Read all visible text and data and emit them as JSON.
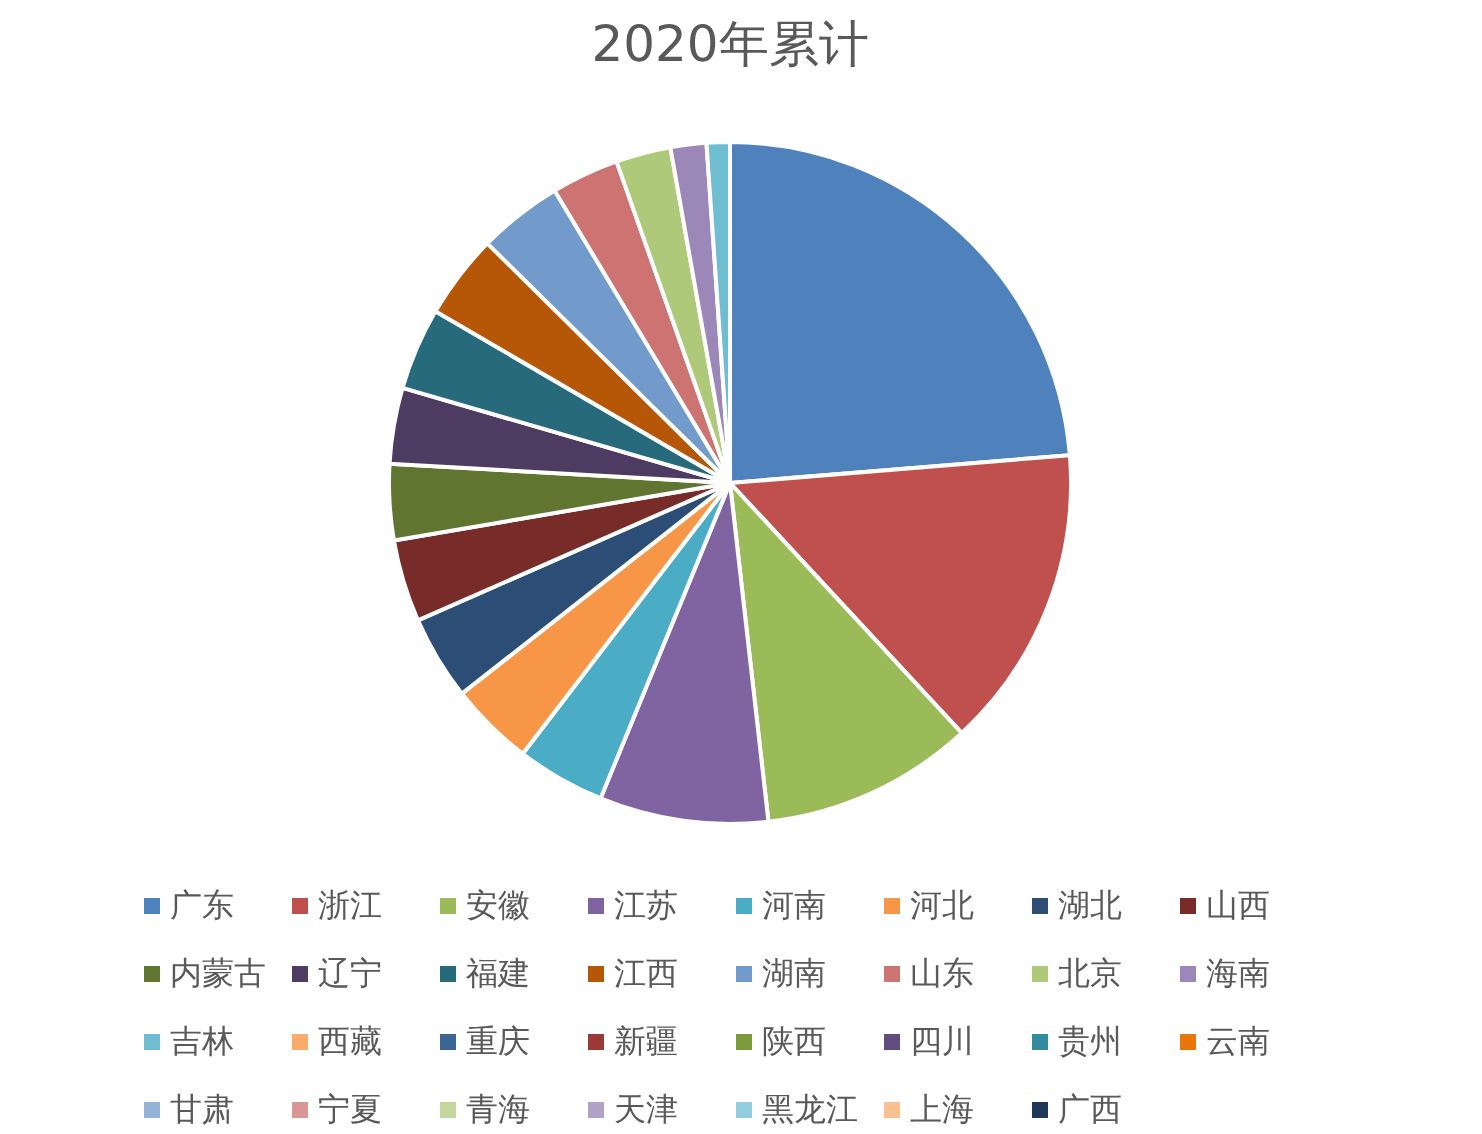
{
  "chart_data": {
    "type": "pie",
    "title": "2020年累计",
    "categories": [
      "广东",
      "浙江",
      "安徽",
      "江苏",
      "河南",
      "河北",
      "湖北",
      "山西",
      "内蒙古",
      "辽宁",
      "福建",
      "江西",
      "湖南",
      "山东",
      "北京",
      "海南",
      "吉林",
      "西藏",
      "重庆",
      "新疆",
      "陕西",
      "四川",
      "贵州",
      "云南",
      "甘肃",
      "宁夏",
      "青海",
      "天津",
      "黑龙江",
      "上海",
      "广西"
    ],
    "values": [
      23.7,
      14.4,
      10.1,
      8.0,
      4.2,
      4.0,
      4.0,
      3.9,
      3.6,
      3.6,
      3.9,
      4.0,
      4.0,
      3.2,
      2.6,
      1.7,
      1.1,
      0,
      0,
      0,
      0,
      0,
      0,
      0,
      0,
      0,
      0,
      0,
      0,
      0,
      0
    ],
    "colors": [
      "#4f81bd",
      "#c0504d",
      "#9bbb59",
      "#8064a2",
      "#4bacc6",
      "#f79646",
      "#2c4d75",
      "#772c2a",
      "#5f7530",
      "#4d3b62",
      "#276a7c",
      "#b65708",
      "#729aca",
      "#cd7371",
      "#afc97a",
      "#9b87b8",
      "#6fbdd1",
      "#f9ab6b",
      "#3a6595",
      "#9a3a37",
      "#7a9a3c",
      "#634c80",
      "#338ba2",
      "#e8760a",
      "#95b3d7",
      "#d99694",
      "#c3d69b",
      "#b3a2c7",
      "#93cddd",
      "#fac090",
      "#1f3956"
    ],
    "legend": "bottom"
  }
}
